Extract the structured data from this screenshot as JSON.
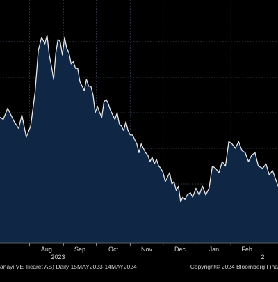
{
  "chart_data": {
    "type": "area",
    "title": "",
    "xlabel": "",
    "ylabel": "",
    "months": [
      {
        "label": "Aug",
        "date": "2023-08-01"
      },
      {
        "label": "Sep",
        "date": "2023-09-01"
      },
      {
        "label": "Oct",
        "date": "2023-10-01"
      },
      {
        "label": "Nov",
        "date": "2023-11-01"
      },
      {
        "label": "Dec",
        "date": "2023-12-01"
      },
      {
        "label": "Jan",
        "date": "2024-01-01"
      },
      {
        "label": "Feb",
        "date": "2024-02-01"
      }
    ],
    "years": [
      {
        "label": "2023",
        "date": "2023-08-27"
      },
      {
        "label": "2",
        "date": "2024-03-01"
      }
    ],
    "xlim": [
      "2023-07-05",
      "2024-03-15"
    ],
    "ylim": [
      0,
      100
    ],
    "grid": true,
    "colors": {
      "background": "#000000",
      "area": "#0f2645",
      "line": "#e8e8e8",
      "grid": "#2b3240"
    },
    "series": [
      {
        "dates": [
          "2023-07-05",
          "2023-07-08",
          "2023-07-12",
          "2023-07-15",
          "2023-07-18",
          "2023-07-22",
          "2023-07-25",
          "2023-07-29",
          "2023-08-02",
          "2023-08-06",
          "2023-08-09",
          "2023-08-12",
          "2023-08-15",
          "2023-08-17",
          "2023-08-19",
          "2023-08-21",
          "2023-08-23",
          "2023-08-25",
          "2023-08-27",
          "2023-08-29",
          "2023-08-31",
          "2023-09-02",
          "2023-09-04",
          "2023-09-06",
          "2023-09-08",
          "2023-09-10",
          "2023-09-12",
          "2023-09-14",
          "2023-09-16",
          "2023-09-18",
          "2023-09-20",
          "2023-09-22",
          "2023-09-24",
          "2023-09-26",
          "2023-09-28",
          "2023-09-30",
          "2023-10-02",
          "2023-10-04",
          "2023-10-06",
          "2023-10-08",
          "2023-10-10",
          "2023-10-12",
          "2023-10-14",
          "2023-10-16",
          "2023-10-18",
          "2023-10-20",
          "2023-10-22",
          "2023-10-24",
          "2023-10-26",
          "2023-10-28",
          "2023-10-30",
          "2023-11-01",
          "2023-11-03",
          "2023-11-05",
          "2023-11-07",
          "2023-11-09",
          "2023-11-11",
          "2023-11-13",
          "2023-11-15",
          "2023-11-17",
          "2023-11-19",
          "2023-11-21",
          "2023-11-23",
          "2023-11-25",
          "2023-11-27",
          "2023-11-29",
          "2023-12-01",
          "2023-12-03",
          "2023-12-05",
          "2023-12-07",
          "2023-12-09",
          "2023-12-11",
          "2023-12-13",
          "2023-12-15",
          "2023-12-17",
          "2023-12-19",
          "2023-12-21",
          "2023-12-23",
          "2023-12-26",
          "2023-12-28",
          "2023-12-31",
          "2024-01-03",
          "2024-01-06",
          "2024-01-09",
          "2024-01-12",
          "2024-01-15",
          "2024-01-18",
          "2024-01-21",
          "2024-01-24",
          "2024-01-27",
          "2024-01-30",
          "2024-02-02",
          "2024-02-05",
          "2024-02-08",
          "2024-02-11",
          "2024-02-14",
          "2024-02-17",
          "2024-02-20",
          "2024-02-23",
          "2024-02-26",
          "2024-03-01",
          "2024-03-04",
          "2024-03-07",
          "2024-03-10",
          "2024-03-15"
        ],
        "values": [
          56,
          55,
          60,
          57,
          54,
          51,
          57,
          47,
          52,
          67,
          86,
          92,
          89,
          93,
          84,
          79,
          73,
          85,
          91,
          90,
          84,
          92,
          87,
          85,
          80,
          81,
          78,
          78,
          72,
          70,
          68,
          73,
          70,
          70,
          66,
          58,
          61,
          58,
          56,
          63,
          64,
          62,
          59,
          57,
          55,
          58,
          53,
          52,
          50,
          54,
          50,
          48,
          48,
          46,
          44,
          40,
          44,
          42,
          40,
          39,
          36,
          38,
          35,
          37,
          34,
          33,
          31,
          27,
          29,
          31,
          26,
          27,
          23,
          25,
          18,
          20,
          19,
          21,
          22,
          20,
          24,
          21,
          25,
          21,
          24,
          34,
          33,
          31,
          36,
          34,
          45,
          44,
          42,
          45,
          41,
          40,
          36,
          39,
          40,
          34,
          33,
          35,
          30,
          32,
          25
        ]
      }
    ]
  },
  "footer": {
    "left": "anayi VE Ticaret AS)  Daily 15MAY2023-14MAY2024",
    "right": "Copyright© 2024 Bloomberg Fina"
  }
}
